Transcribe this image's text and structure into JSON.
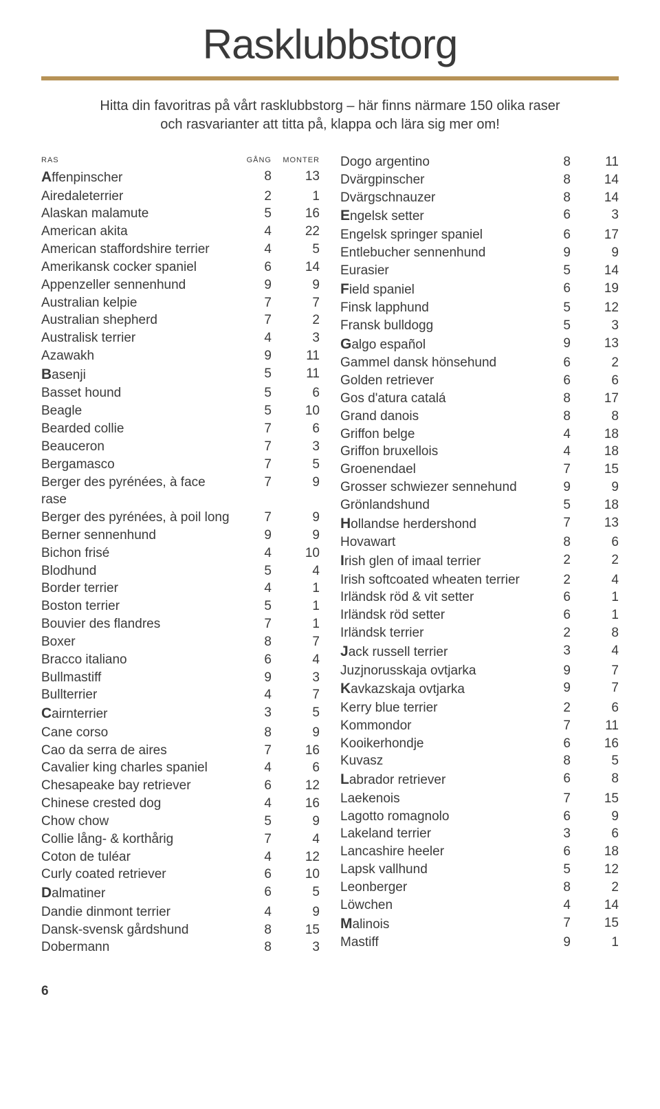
{
  "title": "Rasklubbstorg",
  "intro_line1": "Hitta din favoritras på vårt rasklubbstorg – här finns närmare 150 olika raser",
  "intro_line2": "och rasvarianter att titta på, klappa och lära sig mer om!",
  "headers": {
    "ras": "ras",
    "gang": "gång",
    "monter": "monter"
  },
  "page_number": "6",
  "colors": {
    "rule": "#b79256",
    "text": "#3a3a3a",
    "background": "#ffffff"
  },
  "left": [
    {
      "lead": "A",
      "name": "ffenpinscher",
      "gang": 8,
      "monter": 13
    },
    {
      "name": "Airedaleterrier",
      "gang": 2,
      "monter": 1
    },
    {
      "name": "Alaskan malamute",
      "gang": 5,
      "monter": 16
    },
    {
      "name": "American akita",
      "gang": 4,
      "monter": 22
    },
    {
      "name": "American staffordshire terrier",
      "gang": 4,
      "monter": 5
    },
    {
      "name": "Amerikansk cocker spaniel",
      "gang": 6,
      "monter": 14
    },
    {
      "name": "Appenzeller sennenhund",
      "gang": 9,
      "monter": 9
    },
    {
      "name": "Australian kelpie",
      "gang": 7,
      "monter": 7
    },
    {
      "name": "Australian shepherd",
      "gang": 7,
      "monter": 2
    },
    {
      "name": "Australisk terrier",
      "gang": 4,
      "monter": 3
    },
    {
      "name": "Azawakh",
      "gang": 9,
      "monter": 11
    },
    {
      "lead": "B",
      "name": "asenji",
      "gang": 5,
      "monter": 11
    },
    {
      "name": "Basset hound",
      "gang": 5,
      "monter": 6
    },
    {
      "name": "Beagle",
      "gang": 5,
      "monter": 10
    },
    {
      "name": "Bearded collie",
      "gang": 7,
      "monter": 6
    },
    {
      "name": "Beauceron",
      "gang": 7,
      "monter": 3
    },
    {
      "name": "Bergamasco",
      "gang": 7,
      "monter": 5
    },
    {
      "name": "Berger des pyrénées, à face rase",
      "gang": 7,
      "monter": 9
    },
    {
      "name": "Berger des pyrénées, à poil long",
      "gang": 7,
      "monter": 9
    },
    {
      "name": "Berner sennenhund",
      "gang": 9,
      "monter": 9
    },
    {
      "name": "Bichon frisé",
      "gang": 4,
      "monter": 10
    },
    {
      "name": "Blodhund",
      "gang": 5,
      "monter": 4
    },
    {
      "name": "Border terrier",
      "gang": 4,
      "monter": 1
    },
    {
      "name": "Boston terrier",
      "gang": 5,
      "monter": 1
    },
    {
      "name": "Bouvier des flandres",
      "gang": 7,
      "monter": 1
    },
    {
      "name": "Boxer",
      "gang": 8,
      "monter": 7
    },
    {
      "name": "Bracco italiano",
      "gang": 6,
      "monter": 4
    },
    {
      "name": "Bullmastiff",
      "gang": 9,
      "monter": 3
    },
    {
      "name": "Bullterrier",
      "gang": 4,
      "monter": 7
    },
    {
      "lead": "C",
      "name": "airnterrier",
      "gang": 3,
      "monter": 5
    },
    {
      "name": "Cane corso",
      "gang": 8,
      "monter": 9
    },
    {
      "name": "Cao da serra de aires",
      "gang": 7,
      "monter": 16
    },
    {
      "name": "Cavalier king charles spaniel",
      "gang": 4,
      "monter": 6
    },
    {
      "name": "Chesapeake bay retriever",
      "gang": 6,
      "monter": 12
    },
    {
      "name": "Chinese crested dog",
      "gang": 4,
      "monter": 16
    },
    {
      "name": "Chow chow",
      "gang": 5,
      "monter": 9
    },
    {
      "name": "Collie lång- & korthårig",
      "gang": 7,
      "monter": 4
    },
    {
      "name": "Coton de tuléar",
      "gang": 4,
      "monter": 12
    },
    {
      "name": "Curly coated retriever",
      "gang": 6,
      "monter": 10
    },
    {
      "lead": "D",
      "name": "almatiner",
      "gang": 6,
      "monter": 5
    },
    {
      "name": "Dandie dinmont terrier",
      "gang": 4,
      "monter": 9
    },
    {
      "name": "Dansk-svensk gårdshund",
      "gang": 8,
      "monter": 15
    },
    {
      "name": "Dobermann",
      "gang": 8,
      "monter": 3
    }
  ],
  "right": [
    {
      "name": "Dogo argentino",
      "gang": 8,
      "monter": 11
    },
    {
      "name": "Dvärgpinscher",
      "gang": 8,
      "monter": 14
    },
    {
      "name": "Dvärgschnauzer",
      "gang": 8,
      "monter": 14
    },
    {
      "lead": "E",
      "name": "ngelsk setter",
      "gang": 6,
      "monter": 3
    },
    {
      "name": "Engelsk springer spaniel",
      "gang": 6,
      "monter": 17
    },
    {
      "name": "Entlebucher sennenhund",
      "gang": 9,
      "monter": 9
    },
    {
      "name": "Eurasier",
      "gang": 5,
      "monter": 14
    },
    {
      "lead": "F",
      "name": "ield spaniel",
      "gang": 6,
      "monter": 19
    },
    {
      "name": "Finsk lapphund",
      "gang": 5,
      "monter": 12
    },
    {
      "name": "Fransk bulldogg",
      "gang": 5,
      "monter": 3
    },
    {
      "lead": "G",
      "name": "algo español",
      "gang": 9,
      "monter": 13
    },
    {
      "name": "Gammel dansk hönsehund",
      "gang": 6,
      "monter": 2
    },
    {
      "name": "Golden retriever",
      "gang": 6,
      "monter": 6
    },
    {
      "name": "Gos d'atura catalá",
      "gang": 8,
      "monter": 17
    },
    {
      "name": "Grand danois",
      "gang": 8,
      "monter": 8
    },
    {
      "name": "Griffon belge",
      "gang": 4,
      "monter": 18
    },
    {
      "name": "Griffon bruxellois",
      "gang": 4,
      "monter": 18
    },
    {
      "name": "Groenendael",
      "gang": 7,
      "monter": 15
    },
    {
      "name": "Grosser schwiezer sennehund",
      "gang": 9,
      "monter": 9
    },
    {
      "name": "Grönlandshund",
      "gang": 5,
      "monter": 18
    },
    {
      "lead": "H",
      "name": "ollandse herdershond",
      "gang": 7,
      "monter": 13
    },
    {
      "name": "Hovawart",
      "gang": 8,
      "monter": 6
    },
    {
      "lead": "I",
      "name": "rish glen of imaal terrier",
      "gang": 2,
      "monter": 2
    },
    {
      "name": "Irish softcoated wheaten terrier",
      "gang": 2,
      "monter": 4
    },
    {
      "name": "Irländsk röd & vit setter",
      "gang": 6,
      "monter": 1
    },
    {
      "name": "Irländsk röd setter",
      "gang": 6,
      "monter": 1
    },
    {
      "name": "Irländsk terrier",
      "gang": 2,
      "monter": 8
    },
    {
      "lead": "J",
      "name": "ack russell terrier",
      "gang": 3,
      "monter": 4
    },
    {
      "name": "Juzjnorusskaja ovtjarka",
      "gang": 9,
      "monter": 7
    },
    {
      "lead": "K",
      "name": "avkazskaja ovtjarka",
      "gang": 9,
      "monter": 7
    },
    {
      "name": "Kerry blue terrier",
      "gang": 2,
      "monter": 6
    },
    {
      "name": "Kommondor",
      "gang": 7,
      "monter": 11
    },
    {
      "name": "Kooikerhondje",
      "gang": 6,
      "monter": 16
    },
    {
      "name": "Kuvasz",
      "gang": 8,
      "monter": 5
    },
    {
      "lead": "L",
      "name": "abrador retriever",
      "gang": 6,
      "monter": 8
    },
    {
      "name": "Laekenois",
      "gang": 7,
      "monter": 15
    },
    {
      "name": "Lagotto romagnolo",
      "gang": 6,
      "monter": 9
    },
    {
      "name": "Lakeland terrier",
      "gang": 3,
      "monter": 6
    },
    {
      "name": "Lancashire heeler",
      "gang": 6,
      "monter": 18
    },
    {
      "name": "Lapsk vallhund",
      "gang": 5,
      "monter": 12
    },
    {
      "name": "Leonberger",
      "gang": 8,
      "monter": 2
    },
    {
      "name": "Löwchen",
      "gang": 4,
      "monter": 14
    },
    {
      "lead": "M",
      "name": "alinois",
      "gang": 7,
      "monter": 15
    },
    {
      "name": "Mastiff",
      "gang": 9,
      "monter": 1
    }
  ]
}
